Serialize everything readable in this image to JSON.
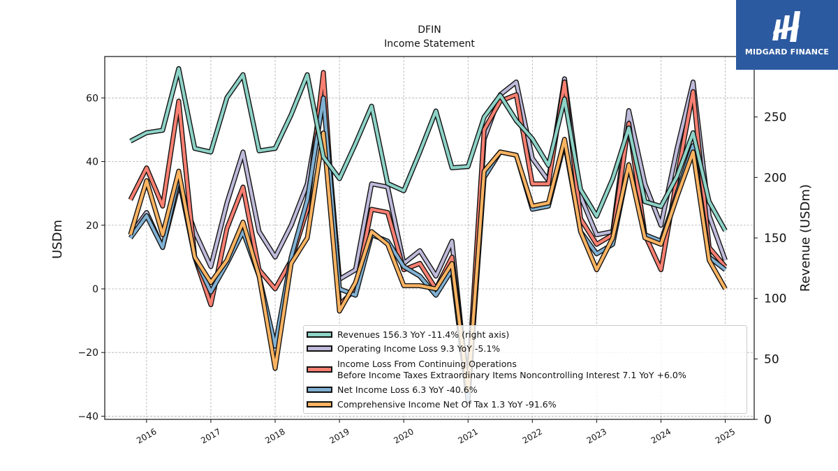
{
  "chart_data": {
    "type": "line",
    "title": "DFIN",
    "subtitle": "Income Statement",
    "ylabel": "USDm",
    "ylabel_right": "Revenue (USDm)",
    "ylim": [
      -41,
      73
    ],
    "ylim_right": [
      0,
      300
    ],
    "yticks": [
      -40,
      -20,
      0,
      20,
      40,
      60
    ],
    "yticks_right": [
      0,
      50,
      100,
      150,
      200,
      250
    ],
    "xlim": [
      2015.35,
      2025.45
    ],
    "xticks": [
      "2016",
      "2017",
      "2018",
      "2019",
      "2020",
      "2021",
      "2022",
      "2023",
      "2024",
      "2025"
    ],
    "grid": true,
    "legend_position": "lower-right",
    "x": [
      2015.75,
      2016.0,
      2016.25,
      2016.5,
      2016.75,
      2017.0,
      2017.25,
      2017.5,
      2017.75,
      2018.0,
      2018.25,
      2018.5,
      2018.75,
      2019.0,
      2019.25,
      2019.5,
      2019.75,
      2020.0,
      2020.25,
      2020.5,
      2020.75,
      2021.0,
      2021.25,
      2021.5,
      2021.75,
      2022.0,
      2022.25,
      2022.5,
      2022.75,
      2023.0,
      2023.25,
      2023.5,
      2023.75,
      2024.0,
      2024.25,
      2024.5,
      2024.75,
      2025.0
    ],
    "series": [
      {
        "name": "Revenues",
        "axis": "right",
        "color": "#8dd3c7",
        "legend": "Revenues  156.3 YoY -11.4% (right axis)",
        "values": [
          230,
          237,
          239,
          290,
          224,
          221,
          266,
          285,
          222,
          224,
          252,
          285,
          217,
          199,
          228,
          259,
          195,
          189,
          221,
          255,
          208,
          209,
          250,
          268,
          247,
          232,
          210,
          265,
          190,
          168,
          199,
          241,
          180,
          176,
          201,
          237,
          180,
          156
        ]
      },
      {
        "name": "Operating Income Loss",
        "axis": "left",
        "color": "#bebada",
        "legend": "Operating Income Loss  9.3 YoY -5.1%",
        "values": [
          17,
          24,
          13,
          33,
          18,
          7,
          27,
          43,
          18,
          10,
          20,
          33,
          62,
          3,
          6,
          33,
          32,
          8,
          12,
          4,
          15,
          -33,
          47,
          61,
          65,
          41,
          34,
          66,
          29,
          17,
          18,
          56,
          33,
          20,
          44,
          65,
          23,
          9
        ]
      },
      {
        "name": "Income Loss From Continuing Operations Before Income Taxes Extraordinary Items Noncontrolling Interest",
        "axis": "left",
        "color": "#fb8072",
        "legend": "Income Loss From Continuing Operations",
        "legend2": "Before Income Taxes Extraordinary Items Noncontrolling Interest  7.1 YoY +6.0%",
        "values": [
          28,
          38,
          26,
          59,
          10,
          -5,
          19,
          32,
          6,
          0,
          9,
          25,
          68,
          -5,
          0,
          25,
          24,
          6,
          8,
          0,
          10,
          -30,
          50,
          59,
          61,
          33,
          33,
          65,
          22,
          14,
          17,
          52,
          17,
          6,
          35,
          62,
          13,
          7
        ]
      },
      {
        "name": "Net Income Loss",
        "axis": "left",
        "color": "#80b1d3",
        "legend": "Net Income Loss  6.3 YoY -40.6%",
        "values": [
          16,
          23,
          13,
          35,
          10,
          -1,
          8,
          18,
          4,
          -18,
          10,
          28,
          60,
          0,
          -2,
          17,
          15,
          7,
          4,
          -2,
          6,
          -35,
          35,
          43,
          42,
          25,
          26,
          46,
          18,
          11,
          14,
          39,
          17,
          15,
          30,
          45,
          10,
          6
        ]
      },
      {
        "name": "Comprehensive Income Net Of Tax",
        "axis": "left",
        "color": "#fdb462",
        "legend": "Comprehensive Income Net Of Tax  1.3 YoY -91.6%",
        "values": [
          17,
          34,
          17,
          37,
          10,
          2,
          9,
          21,
          4,
          -25,
          8,
          16,
          49,
          -7,
          2,
          18,
          14,
          1,
          1,
          0,
          8,
          -32,
          37,
          43,
          42,
          26,
          27,
          47,
          18,
          6,
          16,
          39,
          16,
          14,
          29,
          43,
          9,
          0
        ]
      }
    ]
  },
  "logo": {
    "text": "MIDGARD FINANCE"
  }
}
